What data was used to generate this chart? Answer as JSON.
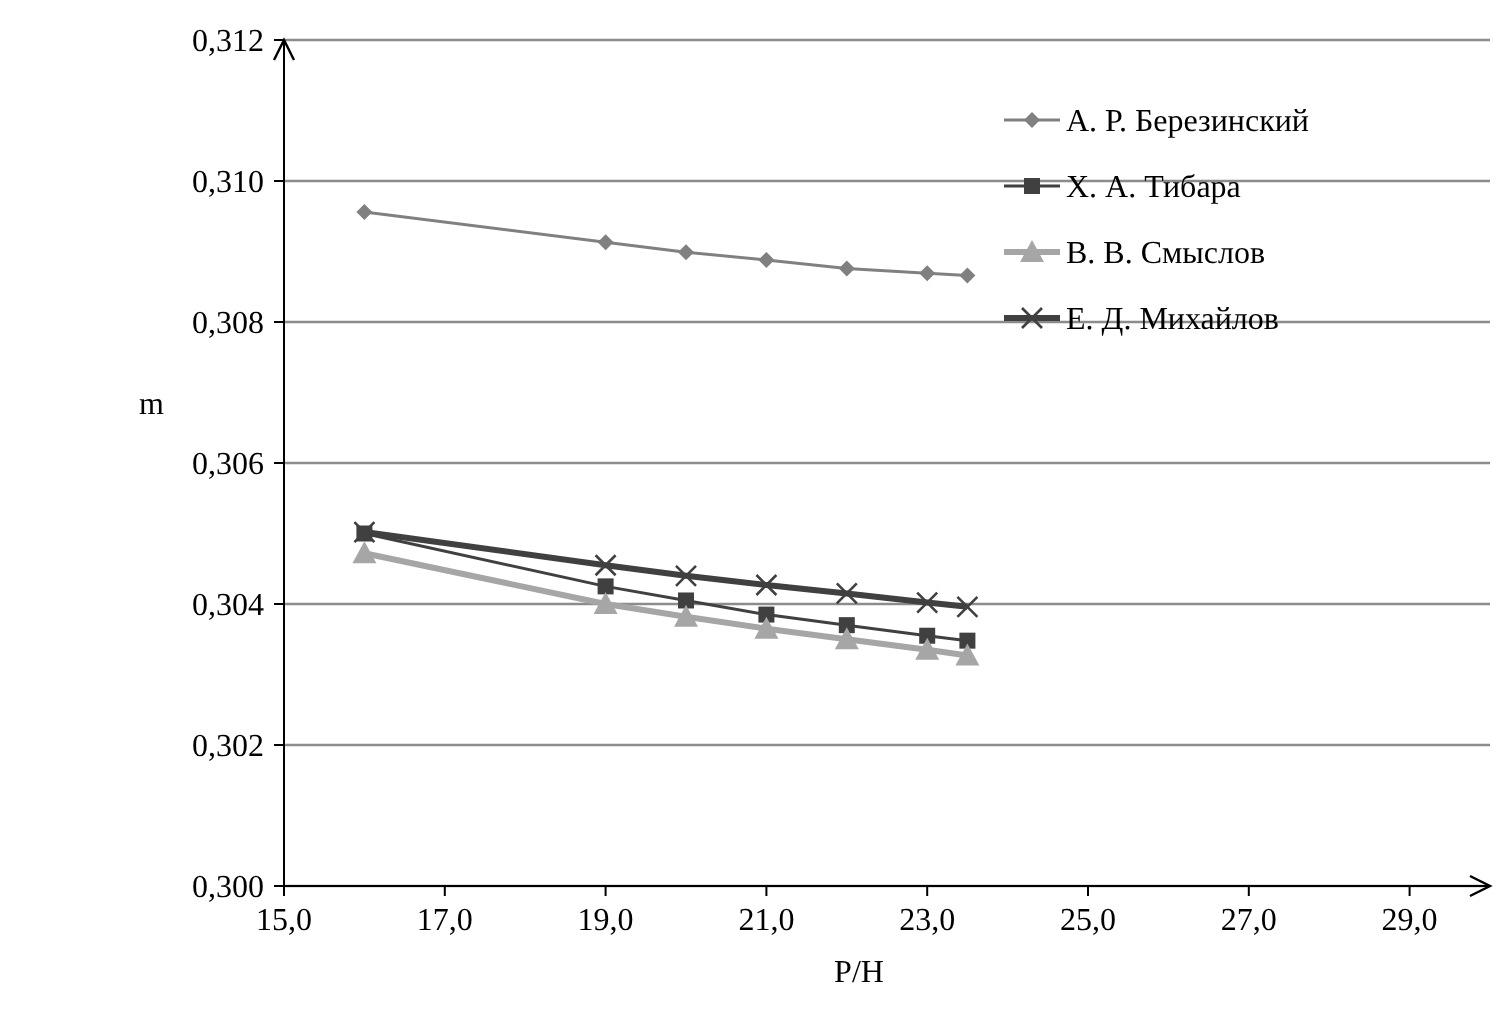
{
  "chart_data": {
    "type": "line",
    "xlabel": "P/H",
    "ylabel": "m",
    "x": [
      16,
      19,
      20,
      21,
      22,
      23,
      23.5
    ],
    "xlim": [
      15,
      30
    ],
    "xticks": [
      {
        "value": 15,
        "label": "15,0"
      },
      {
        "value": 17,
        "label": "17,0"
      },
      {
        "value": 19,
        "label": "19,0"
      },
      {
        "value": 21,
        "label": "21,0"
      },
      {
        "value": 23,
        "label": "23,0"
      },
      {
        "value": 25,
        "label": "25,0"
      },
      {
        "value": 27,
        "label": "27,0"
      },
      {
        "value": 29,
        "label": "29,0"
      }
    ],
    "ylim": [
      0.3,
      0.312
    ],
    "yticks": [
      {
        "value": 0.3,
        "label": "0,300"
      },
      {
        "value": 0.302,
        "label": "0,302"
      },
      {
        "value": 0.304,
        "label": "0,304"
      },
      {
        "value": 0.306,
        "label": "0,306"
      },
      {
        "value": 0.308,
        "label": "0,308"
      },
      {
        "value": 0.31,
        "label": "0,310"
      },
      {
        "value": 0.312,
        "label": "0,312"
      }
    ],
    "grid": "y",
    "legend": "right",
    "line_style": "solid",
    "series": [
      {
        "name": "А. Р. Березинский",
        "color": "#808080",
        "marker": "diamond",
        "values": [
          0.30956,
          0.30913,
          0.30899,
          0.30888,
          0.30876,
          0.30869,
          0.30866
        ]
      },
      {
        "name": "Х. А. Тибара",
        "color": "#404040",
        "marker": "square",
        "values": [
          0.305,
          0.30425,
          0.30405,
          0.30385,
          0.3037,
          0.30355,
          0.30348
        ]
      },
      {
        "name": "В. В. Смыслов",
        "color": "#a6a6a6",
        "marker": "triangle",
        "values": [
          0.30472,
          0.304,
          0.30382,
          0.30365,
          0.3035,
          0.30335,
          0.30327
        ]
      },
      {
        "name": "Е. Д. Михайлов",
        "color": "#404040",
        "marker": "cross",
        "values": [
          0.30502,
          0.30455,
          0.3044,
          0.30427,
          0.30415,
          0.30402,
          0.30396
        ]
      }
    ]
  }
}
